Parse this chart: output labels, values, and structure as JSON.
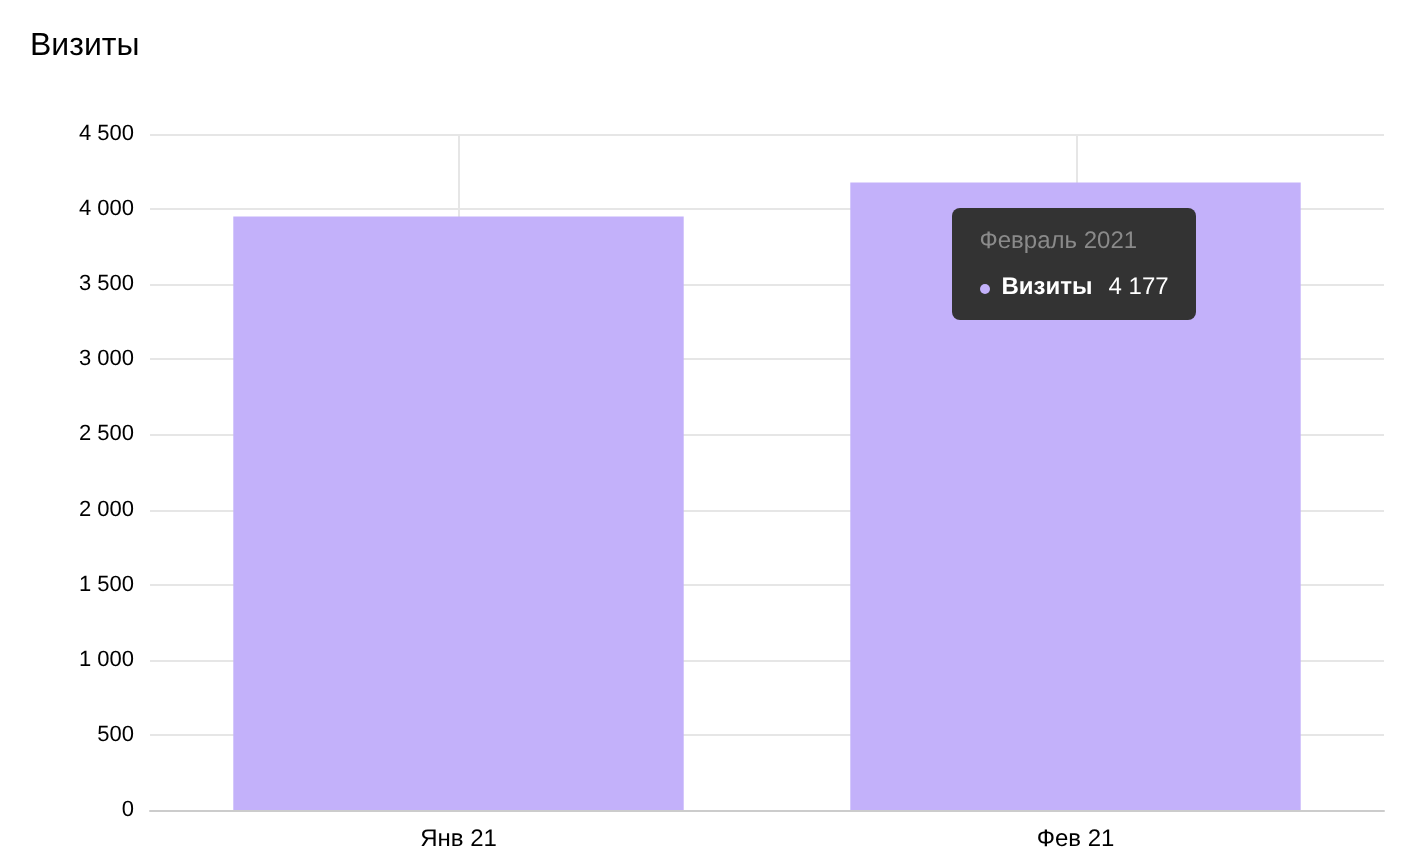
{
  "chart_data": {
    "type": "bar",
    "title": "Визиты",
    "categories": [
      "Янв 21",
      "Фев 21"
    ],
    "series": [
      {
        "name": "Визиты",
        "color": "#c3b1fa",
        "values": [
          3950,
          4177
        ],
        "value_labels": [
          null,
          "4 177"
        ]
      }
    ],
    "ylim": [
      0,
      4500
    ],
    "yticks": [
      0,
      500,
      1000,
      1500,
      2000,
      2500,
      3000,
      3500,
      4000,
      4500
    ],
    "grid": true,
    "legend": "top right",
    "annotations": [
      {
        "text": "Февраль 2021",
        "x": "Фев 21",
        "y": 4177
      }
    ]
  }
}
